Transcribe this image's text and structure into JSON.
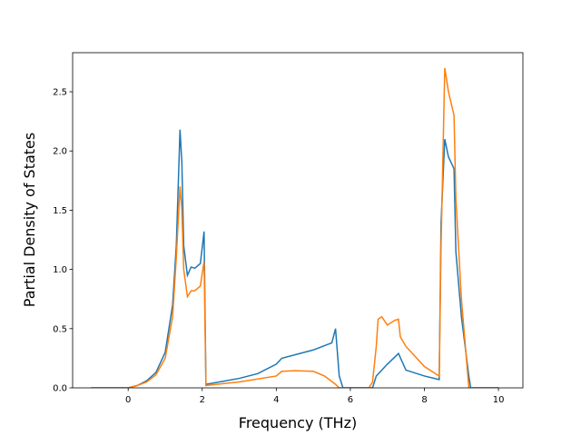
{
  "chart_data": {
    "type": "line",
    "xlabel": "Frequency (THz)",
    "ylabel": "Partial Density of States",
    "xlim": [
      -1.5,
      10.66
    ],
    "ylim": [
      0,
      2.83
    ],
    "xticks": [
      0,
      2,
      4,
      6,
      8,
      10
    ],
    "yticks": [
      {
        "value": 0,
        "label": "0.0"
      },
      0.5,
      {
        "value": 1,
        "label": "1.0"
      },
      1.5,
      {
        "value": 2,
        "label": "2.0"
      },
      2.5
    ],
    "series": [
      {
        "color": "#1f77b4",
        "x": [
          -1,
          0,
          0.25,
          0.5,
          0.75,
          1.0,
          1.2,
          1.3,
          1.4,
          1.45,
          1.5,
          1.6,
          1.7,
          1.8,
          1.95,
          2.05,
          2.1,
          3,
          3.5,
          4.0,
          4.15,
          5,
          5.5,
          5.6,
          5.7,
          5.8,
          6.5,
          6.6,
          6.7,
          7.0,
          7.3,
          7.5,
          8.0,
          8.4,
          8.45,
          8.55,
          8.65,
          8.8,
          8.85,
          9.0,
          9.2,
          9.25,
          10
        ],
        "values": [
          0,
          0,
          0.02,
          0.06,
          0.13,
          0.3,
          0.7,
          1.2,
          2.18,
          1.9,
          1.2,
          0.95,
          1.02,
          1.01,
          1.05,
          1.32,
          0.03,
          0.08,
          0.12,
          0.2,
          0.25,
          0.32,
          0.38,
          0.5,
          0.1,
          0,
          0,
          0,
          0.1,
          0.2,
          0.29,
          0.15,
          0.1,
          0.07,
          1.4,
          2.1,
          1.95,
          1.85,
          1.15,
          0.6,
          0.1,
          0,
          0
        ]
      },
      {
        "color": "#ff7f0e",
        "x": [
          -1,
          0,
          0.25,
          0.5,
          0.75,
          1.0,
          1.2,
          1.3,
          1.4,
          1.45,
          1.5,
          1.6,
          1.7,
          1.8,
          1.95,
          2.05,
          2.1,
          3,
          4.0,
          4.15,
          4.5,
          5,
          5.3,
          5.6,
          5.7,
          6.5,
          6.6,
          6.7,
          6.75,
          6.85,
          7.0,
          7.2,
          7.3,
          7.35,
          7.5,
          8.0,
          8.4,
          8.45,
          8.55,
          8.65,
          8.8,
          8.85,
          9.0,
          9.2,
          10
        ],
        "values": [
          0,
          0,
          0.02,
          0.05,
          0.11,
          0.25,
          0.6,
          1.1,
          1.7,
          1.5,
          1.0,
          0.77,
          0.82,
          0.82,
          0.86,
          1.07,
          0.02,
          0.05,
          0.1,
          0.14,
          0.145,
          0.14,
          0.1,
          0.03,
          0,
          0,
          0.05,
          0.35,
          0.58,
          0.6,
          0.53,
          0.57,
          0.58,
          0.43,
          0.35,
          0.18,
          0.1,
          1.2,
          2.7,
          2.5,
          2.3,
          1.6,
          0.75,
          0,
          0
        ]
      }
    ]
  }
}
